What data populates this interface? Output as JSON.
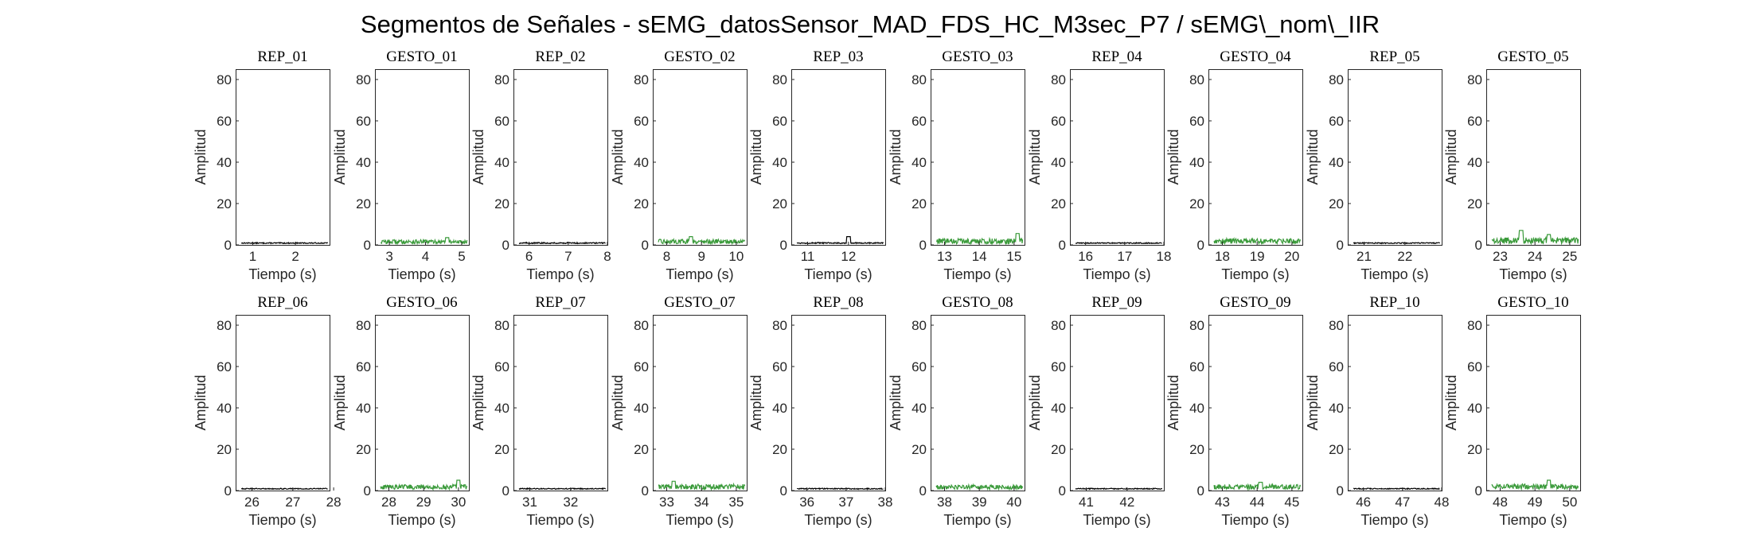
{
  "figure_title": "Segmentos de Señales - sEMG_datosSensor_MAD_FDS_HC_M3sec_P7 / sEMG\\_nom\\_IIR",
  "colors": {
    "rep": "#000000",
    "gesto": "#3a9a3a"
  },
  "chart_data": [
    {
      "type": "line",
      "title": "REP_01",
      "xlabel": "Tiempo (s)",
      "ylabel": "Amplitud",
      "xlim": [
        0.6,
        2.8
      ],
      "ylim": [
        0,
        85
      ],
      "xticks": [
        1,
        2
      ],
      "yticks": [
        0,
        20,
        40,
        60,
        80
      ],
      "series": [
        {
          "kind": "rep",
          "level": 0.8,
          "noise": 0.5,
          "spikes": []
        }
      ]
    },
    {
      "type": "line",
      "title": "GESTO_01",
      "xlabel": "Tiempo (s)",
      "ylabel": "Amplitud",
      "xlim": [
        2.6,
        5.2
      ],
      "ylim": [
        0,
        85
      ],
      "xticks": [
        3,
        4,
        5
      ],
      "yticks": [
        0,
        20,
        40,
        60,
        80
      ],
      "series": [
        {
          "kind": "gesto",
          "level": 1.2,
          "noise": 2.0,
          "spikes": [
            {
              "x": 4.6,
              "y": 3.5
            }
          ]
        }
      ]
    },
    {
      "type": "line",
      "title": "REP_02",
      "xlabel": "Tiempo (s)",
      "ylabel": "Amplitud",
      "xlim": [
        5.6,
        8.0
      ],
      "ylim": [
        0,
        85
      ],
      "xticks": [
        6,
        7,
        8
      ],
      "yticks": [
        0,
        20,
        40,
        60,
        80
      ],
      "series": [
        {
          "kind": "rep",
          "level": 0.8,
          "noise": 0.6,
          "spikes": []
        }
      ]
    },
    {
      "type": "line",
      "title": "GESTO_02",
      "xlabel": "Tiempo (s)",
      "ylabel": "Amplitud",
      "xlim": [
        7.6,
        10.3
      ],
      "ylim": [
        0,
        85
      ],
      "xticks": [
        8,
        9,
        10
      ],
      "yticks": [
        0,
        20,
        40,
        60,
        80
      ],
      "series": [
        {
          "kind": "gesto",
          "level": 1.3,
          "noise": 2.2,
          "spikes": [
            {
              "x": 8.7,
              "y": 4.0
            }
          ]
        }
      ]
    },
    {
      "type": "line",
      "title": "REP_03",
      "xlabel": "Tiempo (s)",
      "ylabel": "Amplitud",
      "xlim": [
        10.6,
        12.9
      ],
      "ylim": [
        0,
        85
      ],
      "xticks": [
        11,
        12
      ],
      "yticks": [
        0,
        20,
        40,
        60,
        80
      ],
      "series": [
        {
          "kind": "rep",
          "level": 0.8,
          "noise": 0.6,
          "spikes": [
            {
              "x": 12.0,
              "y": 4.0
            }
          ]
        }
      ]
    },
    {
      "type": "line",
      "title": "GESTO_03",
      "xlabel": "Tiempo (s)",
      "ylabel": "Amplitud",
      "xlim": [
        12.6,
        15.3
      ],
      "ylim": [
        0,
        85
      ],
      "xticks": [
        13,
        14,
        15
      ],
      "yticks": [
        0,
        20,
        40,
        60,
        80
      ],
      "series": [
        {
          "kind": "gesto",
          "level": 1.4,
          "noise": 2.6,
          "spikes": [
            {
              "x": 15.1,
              "y": 5.5
            }
          ]
        }
      ]
    },
    {
      "type": "line",
      "title": "REP_04",
      "xlabel": "Tiempo (s)",
      "ylabel": "Amplitud",
      "xlim": [
        15.6,
        18.0
      ],
      "ylim": [
        0,
        85
      ],
      "xticks": [
        16,
        17,
        18
      ],
      "yticks": [
        0,
        20,
        40,
        60,
        80
      ],
      "series": [
        {
          "kind": "rep",
          "level": 0.8,
          "noise": 0.5,
          "spikes": []
        }
      ]
    },
    {
      "type": "line",
      "title": "GESTO_04",
      "xlabel": "Tiempo (s)",
      "ylabel": "Amplitud",
      "xlim": [
        17.6,
        20.3
      ],
      "ylim": [
        0,
        85
      ],
      "xticks": [
        18,
        19,
        20
      ],
      "yticks": [
        0,
        20,
        40,
        60,
        80
      ],
      "series": [
        {
          "kind": "gesto",
          "level": 1.5,
          "noise": 2.4,
          "spikes": []
        }
      ]
    },
    {
      "type": "line",
      "title": "REP_05",
      "xlabel": "Tiempo (s)",
      "ylabel": "Amplitud",
      "xlim": [
        20.6,
        22.9
      ],
      "ylim": [
        0,
        85
      ],
      "xticks": [
        21,
        22
      ],
      "yticks": [
        0,
        20,
        40,
        60,
        80
      ],
      "series": [
        {
          "kind": "rep",
          "level": 0.8,
          "noise": 0.5,
          "spikes": []
        }
      ]
    },
    {
      "type": "line",
      "title": "GESTO_05",
      "xlabel": "Tiempo (s)",
      "ylabel": "Amplitud",
      "xlim": [
        22.6,
        25.3
      ],
      "ylim": [
        0,
        85
      ],
      "xticks": [
        23,
        24,
        25
      ],
      "yticks": [
        0,
        20,
        40,
        60,
        80
      ],
      "series": [
        {
          "kind": "gesto",
          "level": 1.6,
          "noise": 3.0,
          "spikes": [
            {
              "x": 23.6,
              "y": 7.0
            },
            {
              "x": 24.4,
              "y": 5.0
            }
          ]
        }
      ]
    },
    {
      "type": "line",
      "title": "REP_06",
      "xlabel": "Tiempo (s)",
      "ylabel": "Amplitud",
      "xlim": [
        25.6,
        27.9
      ],
      "ylim": [
        0,
        85
      ],
      "xticks": [
        26,
        27,
        28
      ],
      "yticks": [
        0,
        20,
        40,
        60,
        80
      ],
      "series": [
        {
          "kind": "rep",
          "level": 0.8,
          "noise": 0.5,
          "spikes": []
        }
      ]
    },
    {
      "type": "line",
      "title": "GESTO_06",
      "xlabel": "Tiempo (s)",
      "ylabel": "Amplitud",
      "xlim": [
        27.6,
        30.3
      ],
      "ylim": [
        0,
        85
      ],
      "xticks": [
        28,
        29,
        30
      ],
      "yticks": [
        0,
        20,
        40,
        60,
        80
      ],
      "series": [
        {
          "kind": "gesto",
          "level": 1.3,
          "noise": 2.4,
          "spikes": [
            {
              "x": 30.0,
              "y": 5.0
            }
          ]
        }
      ]
    },
    {
      "type": "line",
      "title": "REP_07",
      "xlabel": "Tiempo (s)",
      "ylabel": "Amplitud",
      "xlim": [
        30.6,
        32.9
      ],
      "ylim": [
        0,
        85
      ],
      "xticks": [
        31,
        32
      ],
      "yticks": [
        0,
        20,
        40,
        60,
        80
      ],
      "series": [
        {
          "kind": "rep",
          "level": 0.8,
          "noise": 0.5,
          "spikes": []
        }
      ]
    },
    {
      "type": "line",
      "title": "GESTO_07",
      "xlabel": "Tiempo (s)",
      "ylabel": "Amplitud",
      "xlim": [
        32.6,
        35.3
      ],
      "ylim": [
        0,
        85
      ],
      "xticks": [
        33,
        34,
        35
      ],
      "yticks": [
        0,
        20,
        40,
        60,
        80
      ],
      "series": [
        {
          "kind": "gesto",
          "level": 1.4,
          "noise": 2.6,
          "spikes": [
            {
              "x": 33.2,
              "y": 4.5
            }
          ]
        }
      ]
    },
    {
      "type": "line",
      "title": "REP_08",
      "xlabel": "Tiempo (s)",
      "ylabel": "Amplitud",
      "xlim": [
        35.6,
        38.0
      ],
      "ylim": [
        0,
        85
      ],
      "xticks": [
        36,
        37,
        38
      ],
      "yticks": [
        0,
        20,
        40,
        60,
        80
      ],
      "series": [
        {
          "kind": "rep",
          "level": 0.8,
          "noise": 0.5,
          "spikes": []
        }
      ]
    },
    {
      "type": "line",
      "title": "GESTO_08",
      "xlabel": "Tiempo (s)",
      "ylabel": "Amplitud",
      "xlim": [
        37.6,
        40.3
      ],
      "ylim": [
        0,
        85
      ],
      "xticks": [
        38,
        39,
        40
      ],
      "yticks": [
        0,
        20,
        40,
        60,
        80
      ],
      "series": [
        {
          "kind": "gesto",
          "level": 1.3,
          "noise": 2.2,
          "spikes": []
        }
      ]
    },
    {
      "type": "line",
      "title": "REP_09",
      "xlabel": "Tiempo (s)",
      "ylabel": "Amplitud",
      "xlim": [
        40.6,
        42.9
      ],
      "ylim": [
        0,
        85
      ],
      "xticks": [
        41,
        42
      ],
      "yticks": [
        0,
        20,
        40,
        60,
        80
      ],
      "series": [
        {
          "kind": "rep",
          "level": 0.8,
          "noise": 0.5,
          "spikes": []
        }
      ]
    },
    {
      "type": "line",
      "title": "GESTO_09",
      "xlabel": "Tiempo (s)",
      "ylabel": "Amplitud",
      "xlim": [
        42.6,
        45.3
      ],
      "ylim": [
        0,
        85
      ],
      "xticks": [
        43,
        44,
        45
      ],
      "yticks": [
        0,
        20,
        40,
        60,
        80
      ],
      "series": [
        {
          "kind": "gesto",
          "level": 1.4,
          "noise": 2.4,
          "spikes": [
            {
              "x": 44.1,
              "y": 4.0
            }
          ]
        }
      ]
    },
    {
      "type": "line",
      "title": "REP_10",
      "xlabel": "Tiempo (s)",
      "ylabel": "Amplitud",
      "xlim": [
        45.6,
        48.0
      ],
      "ylim": [
        0,
        85
      ],
      "xticks": [
        46,
        47,
        48
      ],
      "yticks": [
        0,
        20,
        40,
        60,
        80
      ],
      "series": [
        {
          "kind": "rep",
          "level": 0.8,
          "noise": 0.5,
          "spikes": []
        }
      ]
    },
    {
      "type": "line",
      "title": "GESTO_10",
      "xlabel": "Tiempo (s)",
      "ylabel": "Amplitud",
      "xlim": [
        47.6,
        50.3
      ],
      "ylim": [
        0,
        85
      ],
      "xticks": [
        48,
        49,
        50
      ],
      "yticks": [
        0,
        20,
        40,
        60,
        80
      ],
      "series": [
        {
          "kind": "gesto",
          "level": 1.5,
          "noise": 2.6,
          "spikes": [
            {
              "x": 49.4,
              "y": 5.0
            }
          ]
        }
      ]
    }
  ]
}
